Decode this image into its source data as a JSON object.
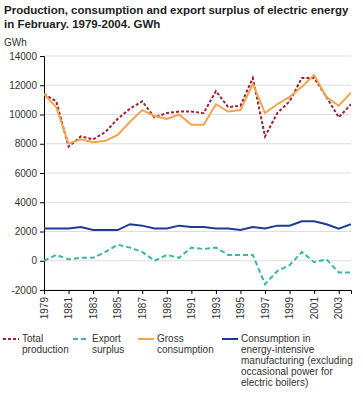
{
  "chart_data": {
    "type": "line",
    "title": "Production, consumption and export surplus of electric energy in February. 1979-2004. GWh",
    "y_label": "GWh",
    "x": [
      1979,
      1980,
      1981,
      1982,
      1983,
      1984,
      1985,
      1986,
      1987,
      1988,
      1989,
      1990,
      1991,
      1992,
      1993,
      1994,
      1995,
      1996,
      1997,
      1998,
      1999,
      2000,
      2001,
      2002,
      2003,
      2004
    ],
    "xlim": [
      1979,
      2004
    ],
    "xticks": [
      1979,
      1981,
      1983,
      1985,
      1987,
      1989,
      1991,
      1993,
      1995,
      1997,
      1999,
      2001,
      2003
    ],
    "ylim": [
      -2000,
      14000
    ],
    "yticks": [
      -2000,
      0,
      2000,
      4000,
      6000,
      8000,
      10000,
      12000,
      14000
    ],
    "grid": true,
    "legend": "bottom",
    "series": [
      {
        "name": "Total production",
        "color": "#9b2335",
        "line_style": "dotted",
        "values": [
          11400,
          10900,
          7800,
          8500,
          8300,
          8800,
          9700,
          10400,
          10900,
          9800,
          10100,
          10200,
          10200,
          10100,
          11600,
          10500,
          10600,
          12500,
          8500,
          10100,
          10900,
          12500,
          12500,
          11200,
          9800,
          10700
        ]
      },
      {
        "name": "Export surplus",
        "color": "#3bb5a8",
        "line_style": "dashed",
        "values": [
          0,
          400,
          100,
          200,
          200,
          600,
          1100,
          900,
          600,
          0,
          400,
          200,
          900,
          800,
          900,
          400,
          400,
          400,
          -1600,
          -700,
          -300,
          600,
          -100,
          100,
          -800,
          -800
        ]
      },
      {
        "name": "Gross consumption",
        "color": "#f5a34a",
        "line_style": "solid",
        "values": [
          11400,
          10500,
          8000,
          8300,
          8100,
          8200,
          8600,
          9500,
          10300,
          9900,
          9700,
          10000,
          9300,
          9300,
          10700,
          10200,
          10300,
          12100,
          10100,
          10700,
          11200,
          11900,
          12700,
          11200,
          10600,
          11500
        ]
      },
      {
        "name": "Consumption in energy-intensive manufacturing (excluding occasional power for electric boilers)",
        "color": "#1f3a93",
        "line_style": "solid",
        "values": [
          2200,
          2200,
          2200,
          2300,
          2100,
          2100,
          2100,
          2500,
          2400,
          2200,
          2200,
          2400,
          2300,
          2300,
          2200,
          2200,
          2100,
          2300,
          2200,
          2400,
          2400,
          2700,
          2700,
          2500,
          2200,
          2500
        ]
      }
    ]
  }
}
